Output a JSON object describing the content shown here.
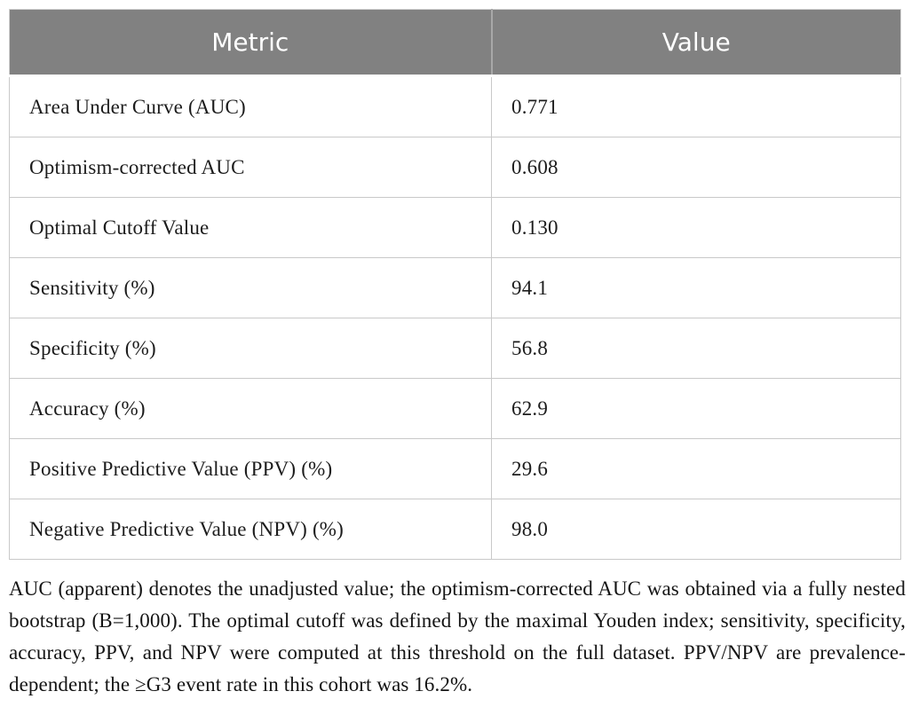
{
  "table": {
    "columns": [
      {
        "label": "Metric"
      },
      {
        "label": "Value"
      }
    ],
    "rows": [
      {
        "metric": "Area Under Curve (AUC)",
        "value": "0.771"
      },
      {
        "metric": "Optimism-corrected AUC",
        "value": "0.608"
      },
      {
        "metric": "Optimal Cutoff Value",
        "value": "0.130"
      },
      {
        "metric": "Sensitivity (%)",
        "value": "94.1"
      },
      {
        "metric": "Specificity (%)",
        "value": "56.8"
      },
      {
        "metric": "Accuracy (%)",
        "value": "62.9"
      },
      {
        "metric": "Positive Predictive Value (PPV) (%)",
        "value": "29.6"
      },
      {
        "metric": "Negative Predictive Value (NPV) (%)",
        "value": "98.0"
      }
    ]
  },
  "chart_data": {
    "type": "table",
    "title": "",
    "columns": [
      "Metric",
      "Value"
    ],
    "rows": [
      [
        "Area Under Curve (AUC)",
        0.771
      ],
      [
        "Optimism-corrected AUC",
        0.608
      ],
      [
        "Optimal Cutoff Value",
        0.13
      ],
      [
        "Sensitivity (%)",
        94.1
      ],
      [
        "Specificity (%)",
        56.8
      ],
      [
        "Accuracy (%)",
        62.9
      ],
      [
        "Positive Predictive Value (PPV) (%)",
        29.6
      ],
      [
        "Negative Predictive Value (NPV) (%)",
        98.0
      ]
    ]
  },
  "footnote": "AUC (apparent) denotes the unadjusted value; the optimism-corrected AUC was obtained via a fully nested bootstrap (B=1,000). The optimal cutoff was defined by the maximal Youden index; sensitivity, specificity, accuracy, PPV, and NPV were computed at this threshold on the full dataset. PPV/NPV are prevalence-dependent; the ≥G3 event rate in this cohort was 16.2%.",
  "colors": {
    "header_bg": "#818181",
    "header_text": "#ffffff",
    "row_border": "#c9c9c9",
    "body_text": "#1c1c1c"
  }
}
